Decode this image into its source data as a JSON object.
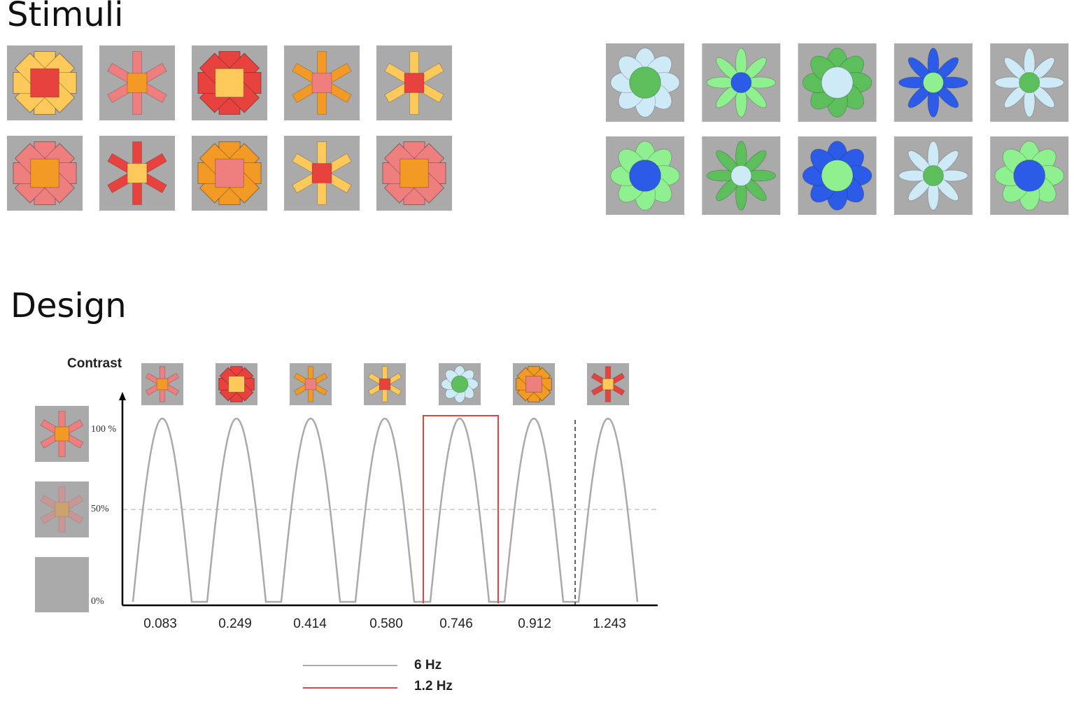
{
  "stimuli": {
    "title": "Stimuli"
  },
  "design": {
    "title": "Design",
    "y_axis_label": "Contrast",
    "y_labels": [
      "100 %",
      "50%",
      "0%"
    ],
    "x_labels": [
      "0.083",
      "0.249",
      "0.414",
      "0.580",
      "0.746",
      "0.912",
      "1.243"
    ],
    "legend": [
      "6 Hz",
      "1.2 Hz"
    ]
  }
}
